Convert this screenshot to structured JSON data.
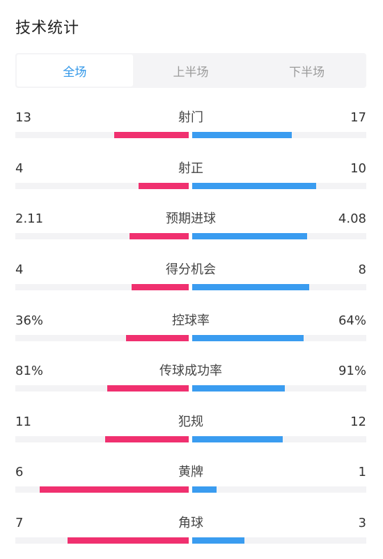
{
  "header": {
    "title": "技术统计"
  },
  "tabs": [
    {
      "label": "全场",
      "active": true
    },
    {
      "label": "上半场",
      "active": false
    },
    {
      "label": "下半场",
      "active": false
    }
  ],
  "colors": {
    "home": "#f0306f",
    "away": "#3a9cf0",
    "accent": "#2f96e8",
    "track": "#f3f3f5"
  },
  "stats": [
    {
      "label": "射门",
      "home": "13",
      "away": "17",
      "home_share": 0.43,
      "away_share": 0.57
    },
    {
      "label": "射正",
      "home": "4",
      "away": "10",
      "home_share": 0.29,
      "away_share": 0.71
    },
    {
      "label": "预期进球",
      "home": "2.11",
      "away": "4.08",
      "home_share": 0.34,
      "away_share": 0.66
    },
    {
      "label": "得分机会",
      "home": "4",
      "away": "8",
      "home_share": 0.33,
      "away_share": 0.67
    },
    {
      "label": "控球率",
      "home": "36%",
      "away": "64%",
      "home_share": 0.36,
      "away_share": 0.64
    },
    {
      "label": "传球成功率",
      "home": "81%",
      "away": "91%",
      "home_share": 0.47,
      "away_share": 0.53
    },
    {
      "label": "犯规",
      "home": "11",
      "away": "12",
      "home_share": 0.48,
      "away_share": 0.52
    },
    {
      "label": "黄牌",
      "home": "6",
      "away": "1",
      "home_share": 0.86,
      "away_share": 0.14
    },
    {
      "label": "角球",
      "home": "7",
      "away": "3",
      "home_share": 0.7,
      "away_share": 0.3
    }
  ]
}
